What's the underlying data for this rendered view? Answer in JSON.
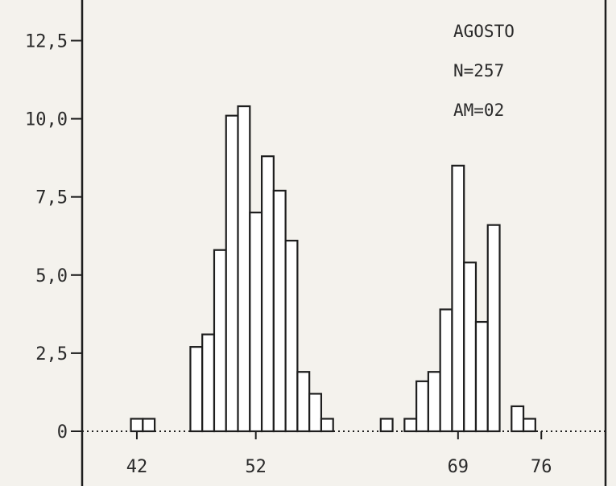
{
  "chart_data": {
    "type": "bar",
    "annotations": [
      "AGOSTO",
      "N=257",
      "AM=02"
    ],
    "y_ticks": [
      "0",
      "2,5",
      "5,0",
      "7,5",
      "10,0",
      "12,5"
    ],
    "y_tick_values": [
      0,
      2.5,
      5.0,
      7.5,
      10.0,
      12.5
    ],
    "ylim": [
      0,
      13.8
    ],
    "x_ticks": [
      "42",
      "52",
      "69",
      "76"
    ],
    "x_tick_values": [
      42,
      52,
      69,
      76
    ],
    "xlim": [
      37.4,
      81.4
    ],
    "grid": false,
    "bins": [
      {
        "x": 42,
        "value": 0.4
      },
      {
        "x": 43,
        "value": 0.4
      },
      {
        "x": 47,
        "value": 2.7
      },
      {
        "x": 48,
        "value": 3.1
      },
      {
        "x": 49,
        "value": 5.8
      },
      {
        "x": 50,
        "value": 10.1
      },
      {
        "x": 51,
        "value": 10.4
      },
      {
        "x": 52,
        "value": 7.0
      },
      {
        "x": 53,
        "value": 8.8
      },
      {
        "x": 54,
        "value": 7.7
      },
      {
        "x": 55,
        "value": 6.1
      },
      {
        "x": 56,
        "value": 1.9
      },
      {
        "x": 57,
        "value": 1.2
      },
      {
        "x": 58,
        "value": 0.4
      },
      {
        "x": 63,
        "value": 0.4
      },
      {
        "x": 65,
        "value": 0.4
      },
      {
        "x": 66,
        "value": 1.6
      },
      {
        "x": 67,
        "value": 1.9
      },
      {
        "x": 68,
        "value": 3.9
      },
      {
        "x": 69,
        "value": 8.5
      },
      {
        "x": 70,
        "value": 5.4
      },
      {
        "x": 71,
        "value": 3.5
      },
      {
        "x": 72,
        "value": 6.6
      },
      {
        "x": 74,
        "value": 0.8
      },
      {
        "x": 75,
        "value": 0.4
      }
    ]
  }
}
